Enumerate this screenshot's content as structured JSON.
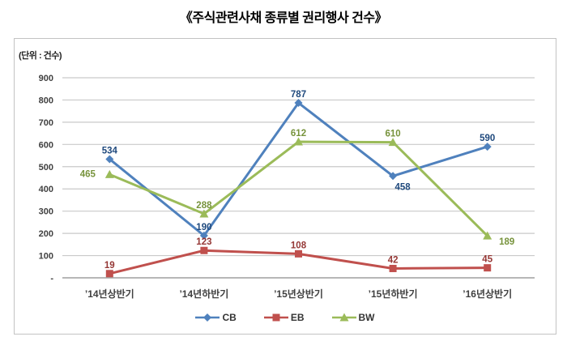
{
  "page": {
    "title": "《주식관련사채 종류별 권리행사 건수》"
  },
  "chart_data": {
    "type": "line",
    "title": "《주식관련사채 종류별 권리행사 건수》",
    "unit_label": "(단위 : 건수)",
    "categories": [
      "’14년상반기",
      "’14년하반기",
      "’15년상반기",
      "’15년하반기",
      "’16년상반기"
    ],
    "series": [
      {
        "name": "CB",
        "marker": "diamond",
        "color": "#4f81bd",
        "label_color": "#1f497d",
        "values": [
          534,
          190,
          787,
          458,
          590
        ]
      },
      {
        "name": "EB",
        "marker": "square",
        "color": "#c0504d",
        "label_color": "#953735",
        "values": [
          19,
          123,
          108,
          42,
          45
        ]
      },
      {
        "name": "BW",
        "marker": "triangle",
        "color": "#9bbb59",
        "label_color": "#77933c",
        "values": [
          465,
          288,
          612,
          610,
          189
        ]
      }
    ],
    "ylim": [
      0,
      900
    ],
    "y_ticks": [
      {
        "value": 900,
        "label": "900"
      },
      {
        "value": 800,
        "label": "800"
      },
      {
        "value": 700,
        "label": "700"
      },
      {
        "value": 600,
        "label": "600"
      },
      {
        "value": 500,
        "label": "500"
      },
      {
        "value": 400,
        "label": "400"
      },
      {
        "value": 300,
        "label": "300"
      },
      {
        "value": 200,
        "label": "200"
      },
      {
        "value": 100,
        "label": "100"
      },
      {
        "value": 0,
        "label": "-"
      }
    ],
    "grid": true,
    "legend_position": "bottom",
    "gridline_color": "#c9c9c9",
    "axis_line_color": "#8c8c8c",
    "tick_label_color": "#404040"
  }
}
